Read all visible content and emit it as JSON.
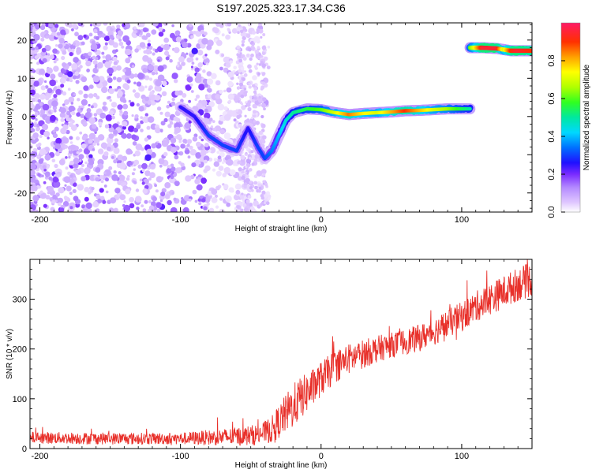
{
  "title": "S197.2025.323.17.34.C36",
  "chart_data": [
    {
      "type": "heatmap",
      "name": "spectrogram",
      "xlabel": "Height of straight line (km)",
      "ylabel": "Frequency (Hz)",
      "xlim": [
        -207,
        150
      ],
      "ylim": [
        -25,
        24.5
      ],
      "xticks": [
        -200,
        -100,
        0,
        100
      ],
      "yticks": [
        -20,
        -10,
        0,
        10,
        20
      ],
      "xtick_labels": [
        "-200",
        "-100",
        "0",
        "100"
      ],
      "ytick_labels": [
        "-20",
        "-10",
        "0",
        "10",
        "20"
      ],
      "colorbar": {
        "label": "Normalized spectral amplitude",
        "range": [
          0,
          1
        ],
        "ticks": [
          0.0,
          0.2,
          0.4,
          0.6,
          0.8
        ],
        "tick_labels": [
          "0.0",
          "0.2",
          "0.4",
          "0.6",
          "0.8"
        ]
      },
      "ridge_main": {
        "x": [
          -100,
          -90,
          -80,
          -70,
          -60,
          -52,
          -45,
          -40,
          -35,
          -30,
          -25,
          -20,
          -10,
          0,
          10,
          20,
          30,
          40,
          50,
          60,
          70,
          80,
          90,
          100,
          106
        ],
        "y": [
          2.5,
          0,
          -5,
          -7.5,
          -9,
          -3,
          -8,
          -11,
          -9,
          -5,
          -1,
          1,
          2,
          1.8,
          1,
          0.5,
          0.8,
          1,
          1.2,
          1.5,
          1.6,
          1.8,
          2,
          2,
          2
        ],
        "amplitude": [
          0.25,
          0.25,
          0.3,
          0.3,
          0.3,
          0.25,
          0.3,
          0.3,
          0.35,
          0.4,
          0.45,
          0.5,
          0.55,
          0.6,
          0.7,
          0.85,
          0.75,
          0.7,
          0.8,
          0.9,
          0.8,
          0.7,
          0.65,
          0.55,
          0.5
        ]
      },
      "ridge_upper": {
        "x": [
          106,
          115,
          125,
          130,
          135,
          140,
          150
        ],
        "y": [
          18,
          18,
          17.8,
          17.5,
          17.2,
          17.2,
          17.2
        ],
        "amplitude": [
          0.6,
          0.95,
          0.95,
          0.7,
          0.9,
          0.95,
          0.9
        ]
      }
    },
    {
      "type": "line",
      "name": "snr",
      "xlabel": "Height of straight line (km)",
      "ylabel": "SNR (10 * v/v)",
      "xlim": [
        -207,
        150
      ],
      "ylim": [
        0,
        380
      ],
      "xticks": [
        -200,
        -100,
        0,
        100
      ],
      "yticks": [
        0,
        100,
        200,
        300
      ],
      "xtick_labels": [
        "-200",
        "-100",
        "0",
        "100"
      ],
      "ytick_labels": [
        "0",
        "100",
        "200",
        "300"
      ],
      "color": "#e8302a",
      "trend": {
        "x": [
          -207,
          -150,
          -100,
          -80,
          -60,
          -45,
          -35,
          -25,
          -15,
          -5,
          0,
          10,
          20,
          30,
          40,
          50,
          60,
          70,
          80,
          90,
          100,
          110,
          120,
          130,
          140,
          150
        ],
        "y": [
          22,
          20,
          20,
          22,
          24,
          28,
          38,
          70,
          100,
          125,
          140,
          165,
          180,
          190,
          200,
          208,
          215,
          222,
          235,
          250,
          265,
          285,
          300,
          315,
          330,
          340
        ]
      },
      "noise": {
        "x": [
          -207,
          -100,
          -40,
          -20,
          0,
          50,
          100,
          150
        ],
        "amplitude": [
          12,
          12,
          22,
          45,
          35,
          25,
          30,
          35
        ]
      }
    }
  ]
}
